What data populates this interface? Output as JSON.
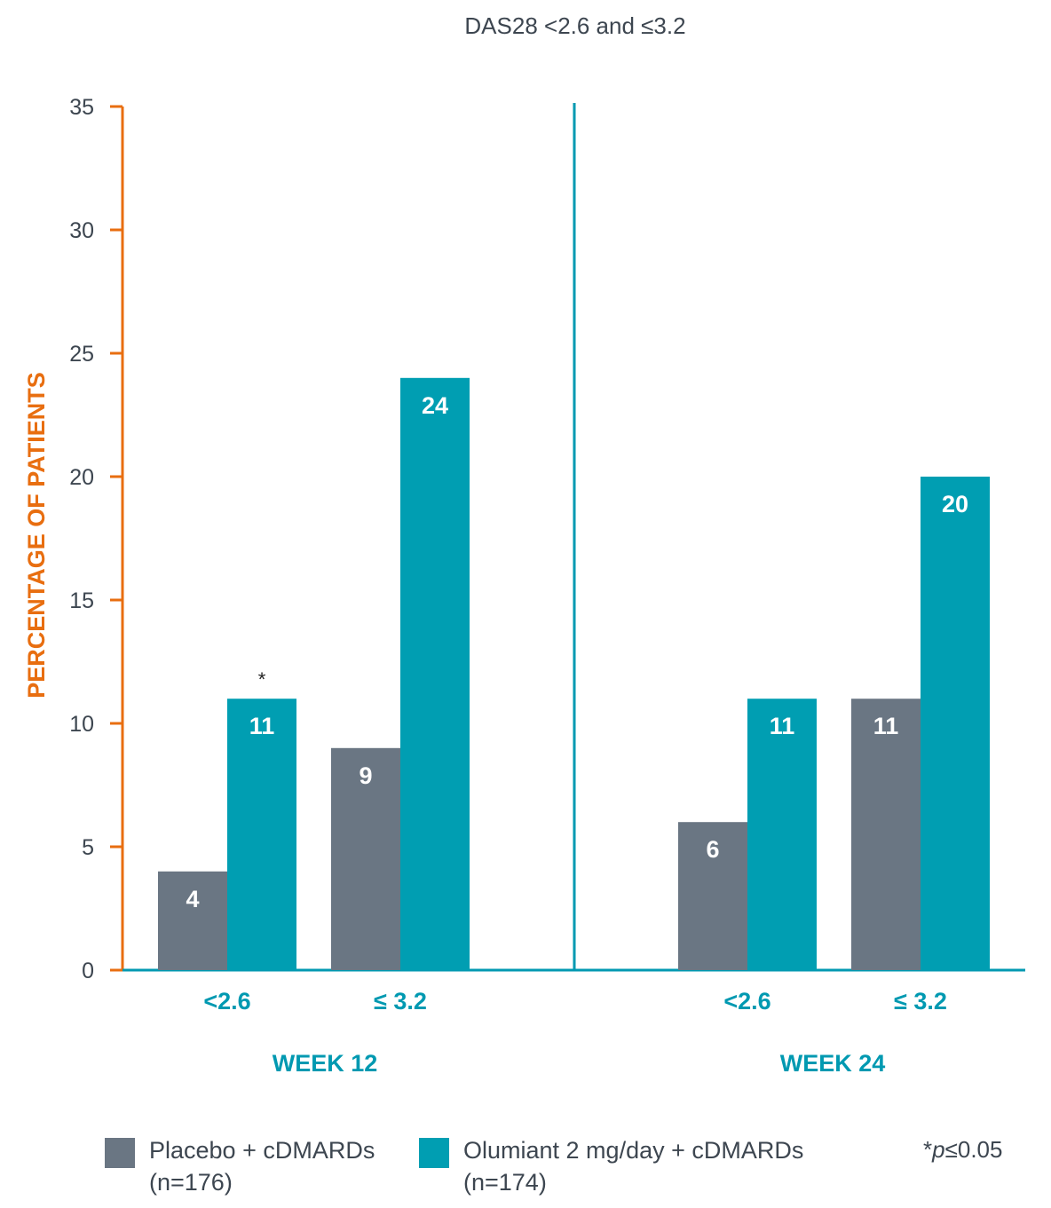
{
  "chart_data": {
    "type": "bar",
    "title": "DAS28 <2.6 and ≤3.2",
    "ylabel": "PERCENTAGE OF PATIENTS",
    "ylim": [
      0,
      35
    ],
    "yticks": [
      0,
      5,
      10,
      15,
      20,
      25,
      30,
      35
    ],
    "groups": [
      {
        "label": "WEEK 12",
        "categories": [
          "<2.6",
          "≤ 3.2"
        ],
        "series": [
          {
            "name": "Placebo + cDMARDs",
            "values": [
              4,
              9
            ]
          },
          {
            "name": "Olumiant 2 mg/day + cDMARDs",
            "values": [
              11,
              24
            ]
          }
        ],
        "annotations": [
          {
            "category": "<2.6",
            "series": "Olumiant 2 mg/day + cDMARDs",
            "text": "*"
          }
        ]
      },
      {
        "label": "WEEK 24",
        "categories": [
          "<2.6",
          "≤ 3.2"
        ],
        "series": [
          {
            "name": "Placebo + cDMARDs",
            "values": [
              6,
              11
            ]
          },
          {
            "name": "Olumiant 2 mg/day + cDMARDs",
            "values": [
              11,
              20
            ]
          }
        ],
        "annotations": []
      }
    ],
    "colors": {
      "placebo": "#6a7683",
      "olumiant": "#009eb2",
      "axis": "#e86e10",
      "category_label": "#0099b1"
    },
    "legend_placement": "bottom"
  },
  "legend": {
    "items": [
      {
        "line1": "Placebo + cDMARDs",
        "line2": "(n=176)",
        "color": "#6a7683"
      },
      {
        "line1": "Olumiant 2 mg/day + cDMARDs",
        "line2": "(n=174)",
        "color": "#009eb2"
      }
    ]
  },
  "footnote": {
    "prefix": "*",
    "italic": "p",
    "rest": "≤0.05"
  }
}
